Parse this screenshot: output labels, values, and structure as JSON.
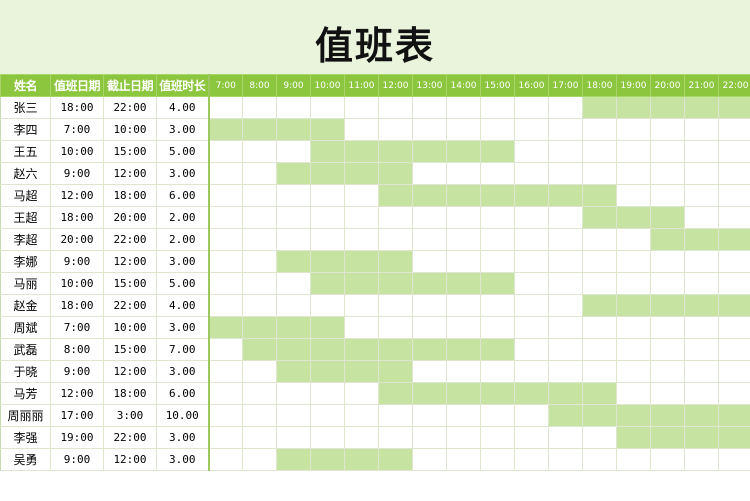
{
  "title": "值班表",
  "headers": {
    "name": "姓名",
    "start": "值班日期",
    "end": "截止日期",
    "duration": "值班时长"
  },
  "hours": [
    "7:00",
    "8:00",
    "9:00",
    "10:00",
    "11:00",
    "12:00",
    "13:00",
    "14:00",
    "15:00",
    "16:00",
    "17:00",
    "18:00",
    "19:00",
    "20:00",
    "21:00",
    "22:00"
  ],
  "fill_color": "#c7e3a1",
  "header_color": "#8cc63f",
  "rows": [
    {
      "name": "张三",
      "start": "18:00",
      "end": "22:00",
      "duration": "4.00",
      "filled": [
        11,
        12,
        13,
        14,
        15
      ]
    },
    {
      "name": "李四",
      "start": "7:00",
      "end": "10:00",
      "duration": "3.00",
      "filled": [
        0,
        1,
        2,
        3
      ]
    },
    {
      "name": "王五",
      "start": "10:00",
      "end": "15:00",
      "duration": "5.00",
      "filled": [
        3,
        4,
        5,
        6,
        7,
        8
      ]
    },
    {
      "name": "赵六",
      "start": "9:00",
      "end": "12:00",
      "duration": "3.00",
      "filled": [
        2,
        3,
        4,
        5
      ]
    },
    {
      "name": "马超",
      "start": "12:00",
      "end": "18:00",
      "duration": "6.00",
      "filled": [
        5,
        6,
        7,
        8,
        9,
        10,
        11
      ]
    },
    {
      "name": "王超",
      "start": "18:00",
      "end": "20:00",
      "duration": "2.00",
      "filled": [
        11,
        12,
        13
      ]
    },
    {
      "name": "李超",
      "start": "20:00",
      "end": "22:00",
      "duration": "2.00",
      "filled": [
        13,
        14,
        15
      ]
    },
    {
      "name": "李娜",
      "start": "9:00",
      "end": "12:00",
      "duration": "3.00",
      "filled": [
        2,
        3,
        4,
        5
      ]
    },
    {
      "name": "马丽",
      "start": "10:00",
      "end": "15:00",
      "duration": "5.00",
      "filled": [
        3,
        4,
        5,
        6,
        7,
        8
      ]
    },
    {
      "name": "赵金",
      "start": "18:00",
      "end": "22:00",
      "duration": "4.00",
      "filled": [
        11,
        12,
        13,
        14,
        15
      ]
    },
    {
      "name": "周斌",
      "start": "7:00",
      "end": "10:00",
      "duration": "3.00",
      "filled": [
        0,
        1,
        2,
        3
      ]
    },
    {
      "name": "武磊",
      "start": "8:00",
      "end": "15:00",
      "duration": "7.00",
      "filled": [
        1,
        2,
        3,
        4,
        5,
        6,
        7,
        8
      ]
    },
    {
      "name": "于晓",
      "start": "9:00",
      "end": "12:00",
      "duration": "3.00",
      "filled": [
        2,
        3,
        4,
        5
      ]
    },
    {
      "name": "马芳",
      "start": "12:00",
      "end": "18:00",
      "duration": "6.00",
      "filled": [
        5,
        6,
        7,
        8,
        9,
        10,
        11
      ]
    },
    {
      "name": "周丽丽",
      "start": "17:00",
      "end": "3:00",
      "duration": "10.00",
      "filled": [
        10,
        11,
        12,
        13,
        14,
        15
      ]
    },
    {
      "name": "李强",
      "start": "19:00",
      "end": "22:00",
      "duration": "3.00",
      "filled": [
        12,
        13,
        14,
        15
      ]
    },
    {
      "name": "吴勇",
      "start": "9:00",
      "end": "12:00",
      "duration": "3.00",
      "filled": [
        2,
        3,
        4,
        5
      ]
    }
  ]
}
